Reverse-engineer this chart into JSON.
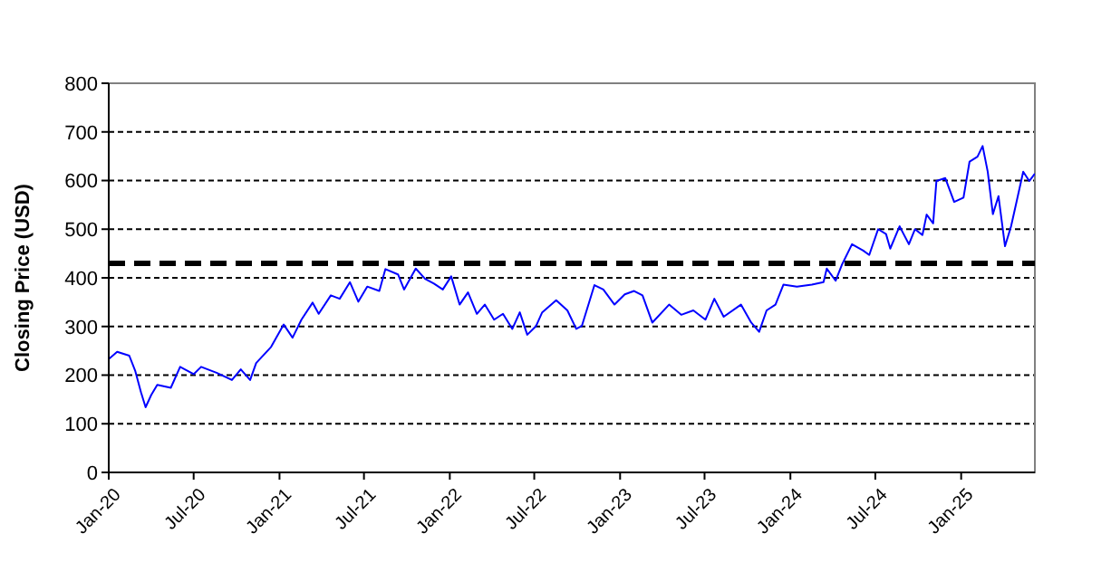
{
  "chart_data": {
    "type": "line",
    "ylabel": "Closing Price (USD)",
    "x": [
      "2020-01-01",
      "2020-01-19",
      "2020-02-14",
      "2020-02-27",
      "2020-03-10",
      "2020-03-20",
      "2020-04-01",
      "2020-04-14",
      "2020-05-13",
      "2020-06-02",
      "2020-07-01",
      "2020-07-17",
      "2020-08-19",
      "2020-09-21",
      "2020-10-10",
      "2020-10-30",
      "2020-11-12",
      "2020-12-14",
      "2021-01-10",
      "2021-01-29",
      "2021-02-17",
      "2021-03-13",
      "2021-03-26",
      "2021-04-21",
      "2021-05-10",
      "2021-06-01",
      "2021-06-19",
      "2021-07-08",
      "2021-08-03",
      "2021-08-16",
      "2021-09-12",
      "2021-09-25",
      "2021-10-20",
      "2021-11-09",
      "2021-11-28",
      "2021-12-17",
      "2022-01-04",
      "2022-01-22",
      "2022-02-09",
      "2022-02-28",
      "2022-03-17",
      "2022-04-06",
      "2022-04-25",
      "2022-05-15",
      "2022-05-31",
      "2022-06-16",
      "2022-07-05",
      "2022-07-18",
      "2022-08-17",
      "2022-09-10",
      "2022-09-29",
      "2022-10-11",
      "2022-11-07",
      "2022-11-26",
      "2022-12-20",
      "2023-01-11",
      "2023-01-31",
      "2023-02-18",
      "2023-03-11",
      "2023-04-16",
      "2023-05-12",
      "2023-06-07",
      "2023-07-03",
      "2023-07-22",
      "2023-08-11",
      "2023-09-17",
      "2023-10-09",
      "2023-10-26",
      "2023-11-11",
      "2023-11-30",
      "2023-12-17",
      "2024-01-15",
      "2024-02-16",
      "2024-03-12",
      "2024-03-19",
      "2024-04-07",
      "2024-04-20",
      "2024-05-12",
      "2024-06-05",
      "2024-06-18",
      "2024-07-07",
      "2024-07-24",
      "2024-08-02",
      "2024-08-22",
      "2024-09-11",
      "2024-09-24",
      "2024-10-10",
      "2024-10-19",
      "2024-11-02",
      "2024-11-09",
      "2024-11-28",
      "2024-12-17",
      "2025-01-06",
      "2025-01-19",
      "2025-02-05",
      "2025-02-16",
      "2025-02-27",
      "2025-03-10",
      "2025-03-22",
      "2025-04-05",
      "2025-04-18",
      "2025-05-01",
      "2025-05-14",
      "2025-05-27",
      "2025-06-08"
    ],
    "series": [
      {
        "color": "#0000ff",
        "values": [
          233,
          248,
          240,
          208,
          165,
          134,
          159,
          180,
          174,
          217,
          202,
          217,
          205,
          190,
          212,
          190,
          225,
          258,
          304,
          277,
          314,
          349,
          326,
          364,
          357,
          391,
          351,
          382,
          373,
          418,
          407,
          376,
          419,
          398,
          388,
          376,
          403,
          345,
          370,
          326,
          345,
          314,
          326,
          295,
          329,
          283,
          301,
          329,
          354,
          333,
          295,
          301,
          385,
          376,
          345,
          366,
          373,
          364,
          308,
          345,
          324,
          333,
          314,
          357,
          320,
          345,
          308,
          289,
          333,
          345,
          386,
          382,
          386,
          391,
          419,
          394,
          426,
          469,
          456,
          447,
          500,
          490,
          460,
          506,
          469,
          500,
          488,
          530,
          512,
          599,
          605,
          556,
          565,
          639,
          649,
          671,
          618,
          531,
          568,
          465,
          506,
          562,
          618,
          599,
          614
        ]
      }
    ],
    "xlim": [
      "2020-01-01",
      "2025-06-08"
    ],
    "xticks": [
      {
        "value": "2020-01-01",
        "label": "Jan-20"
      },
      {
        "value": "2020-07-01",
        "label": "Jul-20"
      },
      {
        "value": "2021-01-01",
        "label": "Jan-21"
      },
      {
        "value": "2021-07-01",
        "label": "Jul-21"
      },
      {
        "value": "2022-01-01",
        "label": "Jan-22"
      },
      {
        "value": "2022-07-01",
        "label": "Jul-22"
      },
      {
        "value": "2023-01-01",
        "label": "Jan-23"
      },
      {
        "value": "2023-07-01",
        "label": "Jul-23"
      },
      {
        "value": "2024-01-01",
        "label": "Jan-24"
      },
      {
        "value": "2024-07-01",
        "label": "Jul-24"
      },
      {
        "value": "2025-01-01",
        "label": "Jan-25"
      }
    ],
    "ylim": [
      0,
      800
    ],
    "yticks": [
      0,
      100,
      200,
      300,
      400,
      500,
      600,
      700,
      800
    ],
    "grid": "y",
    "marker": "none",
    "line_style": "solid",
    "ref_lines": [
      {
        "axis": "y",
        "value": 430,
        "color": "#000000",
        "line_style": "dashed"
      }
    ]
  }
}
